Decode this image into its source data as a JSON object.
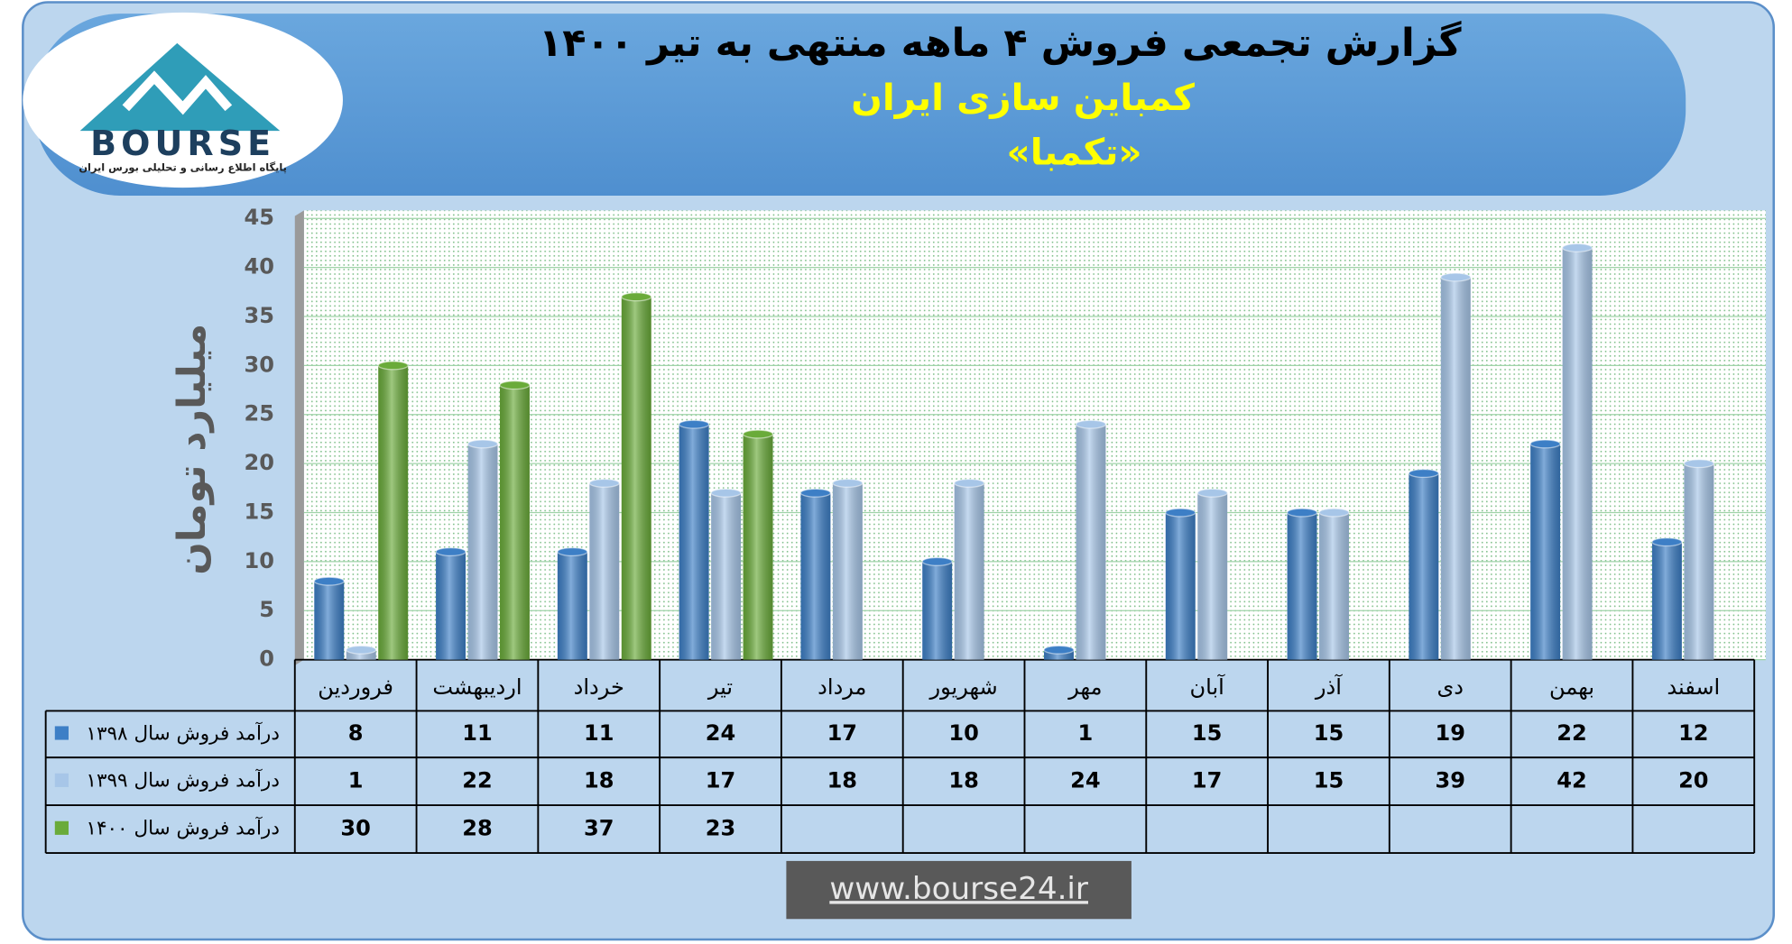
{
  "chart_data": {
    "type": "bar",
    "title": "گزارش تجمعی فروش ۴ ماهه منتهی به تیر ۱۴۰۰",
    "subtitle": "کمباین سازی ایران",
    "subtitle_2": "«تکمبا»",
    "y_label": "میلیارد تومان",
    "categories": [
      "فروردین",
      "اردیبهشت",
      "خرداد",
      "تیر",
      "مرداد",
      "شهریور",
      "مهر",
      "آبان",
      "آذر",
      "دی",
      "بهمن",
      "اسفند"
    ],
    "series": [
      {
        "name": "درآمد فروش سال ۱۳۹۸",
        "color": "#3d7fc6",
        "values": [
          8,
          11,
          11,
          24,
          17,
          10,
          1,
          15,
          15,
          19,
          22,
          12
        ]
      },
      {
        "name": "درآمد فروش سال ۱۳۹۹",
        "color": "#a7c6e8",
        "values": [
          1,
          22,
          18,
          17,
          18,
          18,
          24,
          17,
          15,
          39,
          42,
          20
        ]
      },
      {
        "name": "درآمد فروش سال ۱۴۰۰",
        "color": "#6aab3a",
        "values": [
          30,
          28,
          37,
          23,
          null,
          null,
          null,
          null,
          null,
          null,
          null,
          null
        ]
      }
    ],
    "ylim": [
      0,
      45
    ],
    "yticks": [
      0,
      5,
      10,
      15,
      20,
      25,
      30,
      35,
      40,
      45
    ],
    "grid": true
  },
  "logo": {
    "text": "BOURSE",
    "subtitle": "پایگاه اطلاع رسانی و تحلیلی بورس ایران"
  },
  "website": "www.bourse24.ir"
}
